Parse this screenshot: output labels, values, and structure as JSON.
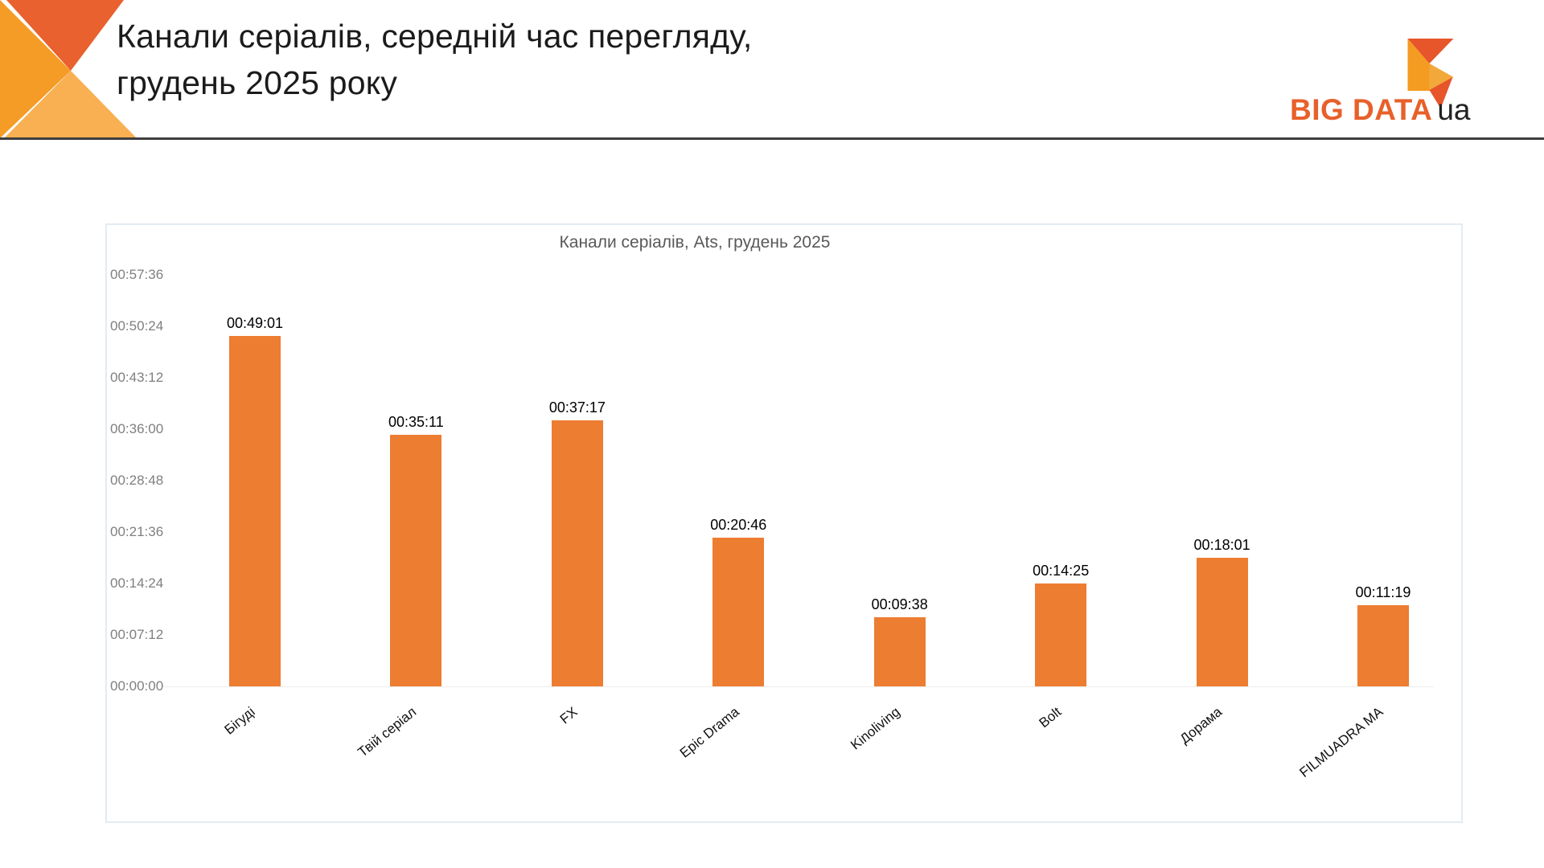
{
  "header": {
    "title_line1": "Канали серіалів, середній час перегляду,",
    "title_line2": "грудень 2025 року",
    "logo": {
      "brand": "BIG DATA",
      "suffix": "ua"
    }
  },
  "colors": {
    "bar": "#ED7D31",
    "brand_orange": "#E8602A",
    "decor_red": "#E8612E",
    "decor_orange": "#F59C27",
    "decor_light_orange": "#F8B052",
    "chart_border": "#E3EBF3",
    "axis_text": "#7F7F7F",
    "chart_title_text": "#595959"
  },
  "chart_data": {
    "type": "bar",
    "title": "Канали серіалів, Ats, грудень 2025",
    "categories": [
      "Бігуді",
      "Твій серіал",
      "FX",
      "Epic Drama",
      "Kinoliving",
      "Bolt",
      "Дорама",
      "FILMUADRA MA"
    ],
    "values": [
      "00:49:01",
      "00:35:11",
      "00:37:17",
      "00:20:46",
      "00:09:38",
      "00:14:25",
      "00:18:01",
      "00:11:19"
    ],
    "values_seconds": [
      2941,
      2111,
      2237,
      1246,
      578,
      865,
      1081,
      679
    ],
    "y_ticks": [
      "00:57:36",
      "00:50:24",
      "00:43:12",
      "00:36:00",
      "00:28:48",
      "00:21:36",
      "00:14:24",
      "00:07:12",
      "00:00:00"
    ],
    "ylim_seconds": [
      0,
      3456
    ],
    "xlabel": "",
    "ylabel": "",
    "grid": false,
    "legend": false,
    "bar_color": "#ED7D31"
  }
}
